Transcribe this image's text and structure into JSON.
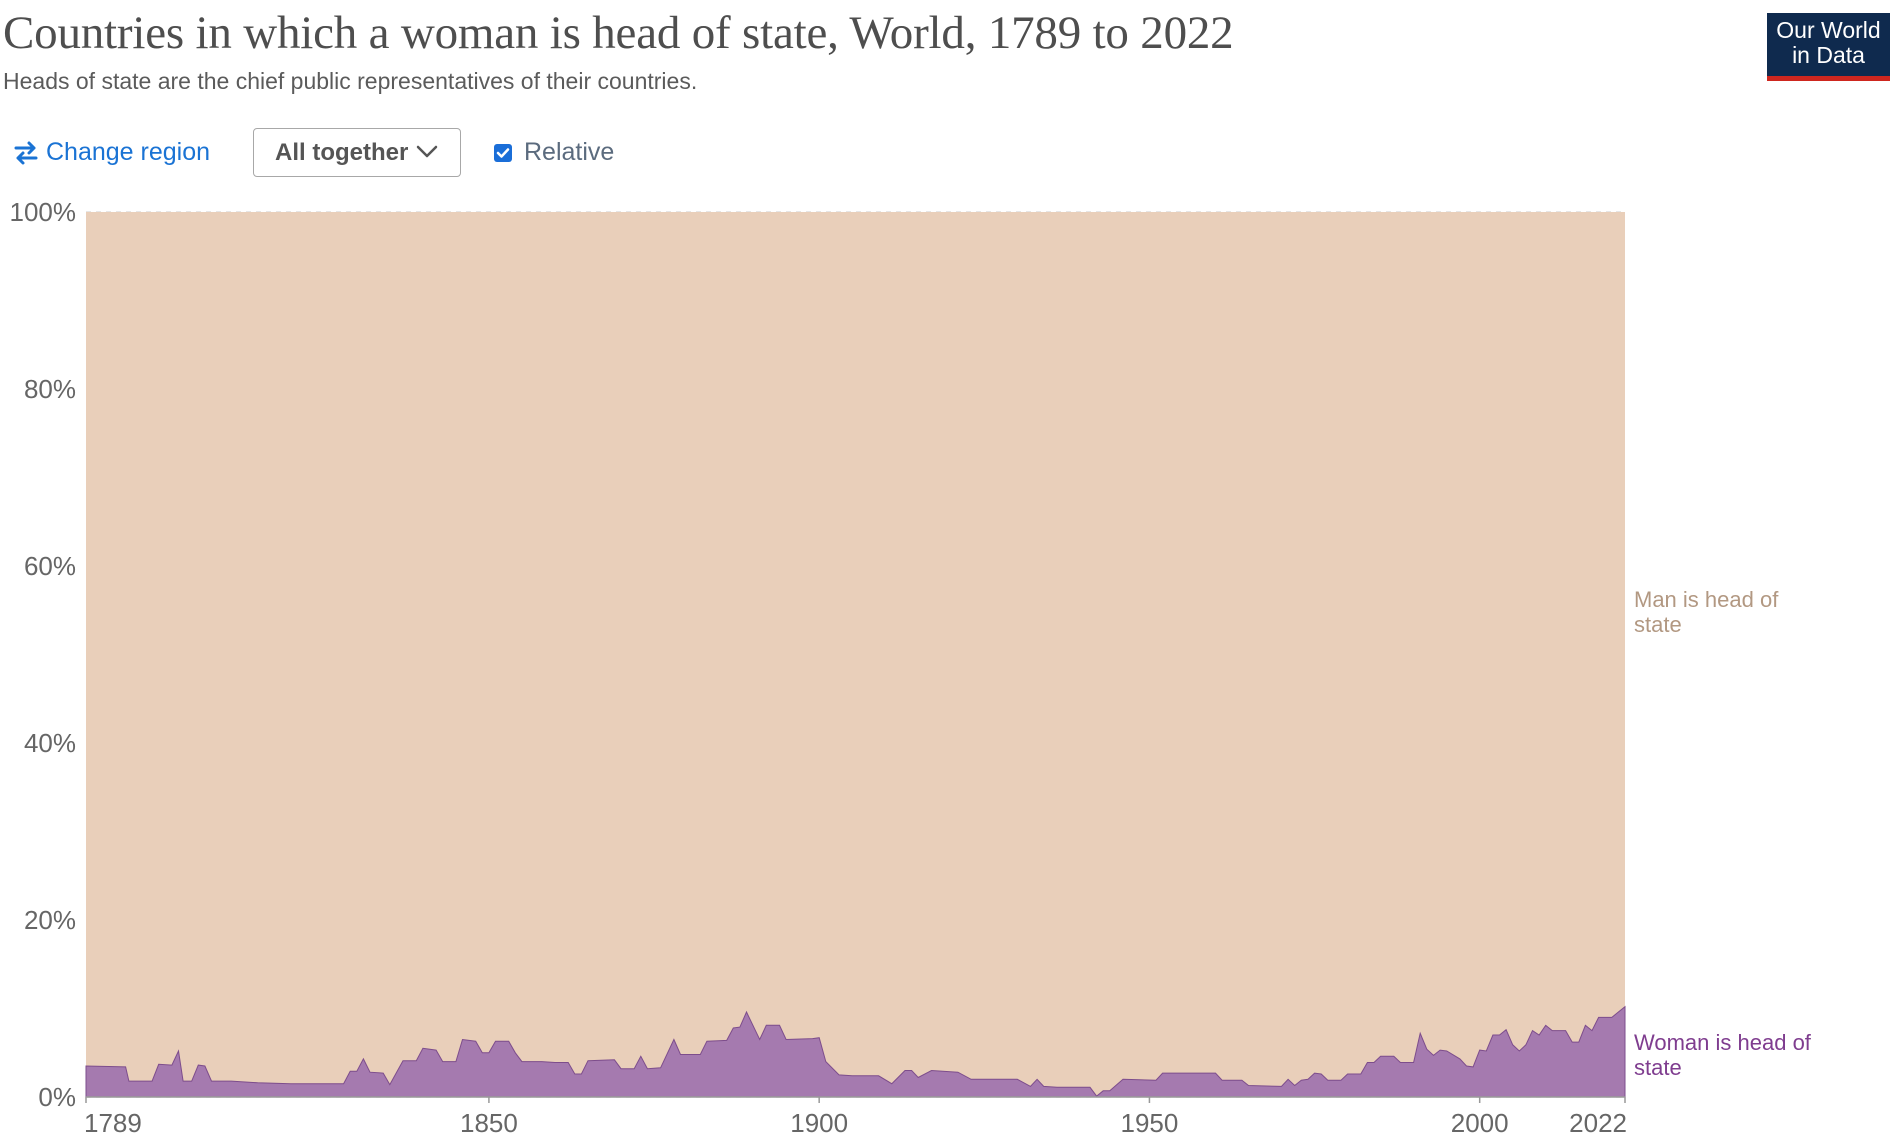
{
  "header": {
    "title": "Countries in which a woman is head of state, World, 1789 to 2022",
    "subtitle": "Heads of state are the chief public representatives of their countries."
  },
  "logo": {
    "line1": "Our World",
    "line2": "in Data"
  },
  "controls": {
    "change_region_label": "Change region",
    "facet_selected": "All together",
    "relative_label": "Relative",
    "relative_checked": true
  },
  "colors": {
    "woman": "#a57aaf",
    "woman_stroke": "#7d4d8c",
    "woman_label": "#7f3d8f",
    "man": "#e9cfba",
    "man_label": "#b29882"
  },
  "chart_data": {
    "type": "area",
    "stacked": true,
    "relative": true,
    "xlim": [
      1789,
      2022
    ],
    "ylim": [
      0,
      100
    ],
    "x_ticks": [
      "1789",
      "1850",
      "1900",
      "1950",
      "2000",
      "2022"
    ],
    "y_ticks": [
      "0%",
      "20%",
      "40%",
      "60%",
      "80%",
      "100%"
    ],
    "grid": "horizontal dashed",
    "series": [
      {
        "name": "Woman is head of state",
        "points": [
          [
            1789,
            3.5
          ],
          [
            1795,
            3.4
          ],
          [
            1795.5,
            1.8
          ],
          [
            1799,
            1.8
          ],
          [
            1800,
            3.7
          ],
          [
            1802,
            3.6
          ],
          [
            1803,
            5.2
          ],
          [
            1803.7,
            1.8
          ],
          [
            1805,
            1.8
          ],
          [
            1806,
            3.6
          ],
          [
            1807,
            3.5
          ],
          [
            1808,
            1.8
          ],
          [
            1811,
            1.8
          ],
          [
            1815,
            1.6
          ],
          [
            1820,
            1.5
          ],
          [
            1825,
            1.5
          ],
          [
            1828,
            1.5
          ],
          [
            1829,
            2.9
          ],
          [
            1830,
            2.9
          ],
          [
            1831,
            4.3
          ],
          [
            1832,
            2.8
          ],
          [
            1834,
            2.7
          ],
          [
            1835,
            1.4
          ],
          [
            1837,
            4.1
          ],
          [
            1839,
            4.1
          ],
          [
            1840,
            5.5
          ],
          [
            1842,
            5.3
          ],
          [
            1843,
            4.0
          ],
          [
            1845,
            4.0
          ],
          [
            1846,
            6.5
          ],
          [
            1848,
            6.3
          ],
          [
            1849,
            5.0
          ],
          [
            1850,
            5.0
          ],
          [
            1851,
            6.3
          ],
          [
            1853,
            6.3
          ],
          [
            1854,
            5.0
          ],
          [
            1855,
            4.0
          ],
          [
            1858,
            4.0
          ],
          [
            1860,
            3.9
          ],
          [
            1862,
            3.9
          ],
          [
            1863,
            2.6
          ],
          [
            1864,
            2.6
          ],
          [
            1865,
            4.1
          ],
          [
            1869,
            4.2
          ],
          [
            1870,
            3.2
          ],
          [
            1872,
            3.2
          ],
          [
            1873,
            4.6
          ],
          [
            1874,
            3.2
          ],
          [
            1876,
            3.3
          ],
          [
            1878,
            6.5
          ],
          [
            1879,
            4.8
          ],
          [
            1882,
            4.8
          ],
          [
            1883,
            6.3
          ],
          [
            1886,
            6.4
          ],
          [
            1887,
            7.8
          ],
          [
            1888,
            7.9
          ],
          [
            1889,
            9.6
          ],
          [
            1891,
            6.5
          ],
          [
            1892,
            8.1
          ],
          [
            1894,
            8.1
          ],
          [
            1895,
            6.5
          ],
          [
            1899,
            6.6
          ],
          [
            1900,
            6.7
          ],
          [
            1901,
            4.0
          ],
          [
            1903,
            2.5
          ],
          [
            1905,
            2.4
          ],
          [
            1909,
            2.4
          ],
          [
            1911,
            1.5
          ],
          [
            1913,
            3.0
          ],
          [
            1914,
            3.0
          ],
          [
            1915,
            2.2
          ],
          [
            1917,
            3.0
          ],
          [
            1921,
            2.8
          ],
          [
            1923,
            2.0
          ],
          [
            1930,
            2.0
          ],
          [
            1932,
            1.2
          ],
          [
            1933,
            2.0
          ],
          [
            1934,
            1.2
          ],
          [
            1936,
            1.1
          ],
          [
            1941,
            1.1
          ],
          [
            1942,
            0.1
          ],
          [
            1943,
            0.7
          ],
          [
            1944,
            0.7
          ],
          [
            1946,
            2.0
          ],
          [
            1951,
            1.9
          ],
          [
            1952,
            2.7
          ],
          [
            1960,
            2.7
          ],
          [
            1961,
            1.9
          ],
          [
            1964,
            1.9
          ],
          [
            1965,
            1.3
          ],
          [
            1970,
            1.2
          ],
          [
            1971,
            2.0
          ],
          [
            1972,
            1.3
          ],
          [
            1973,
            1.9
          ],
          [
            1974,
            2.0
          ],
          [
            1975,
            2.7
          ],
          [
            1976,
            2.6
          ],
          [
            1977,
            1.9
          ],
          [
            1979,
            1.9
          ],
          [
            1980,
            2.6
          ],
          [
            1982,
            2.6
          ],
          [
            1983,
            3.9
          ],
          [
            1984,
            3.9
          ],
          [
            1985,
            4.6
          ],
          [
            1987,
            4.6
          ],
          [
            1988,
            3.9
          ],
          [
            1990,
            3.9
          ],
          [
            1991,
            7.2
          ],
          [
            1992,
            5.4
          ],
          [
            1993,
            4.7
          ],
          [
            1994,
            5.3
          ],
          [
            1995,
            5.2
          ],
          [
            1997,
            4.3
          ],
          [
            1998,
            3.5
          ],
          [
            1999,
            3.4
          ],
          [
            2000,
            5.3
          ],
          [
            2001,
            5.2
          ],
          [
            2002,
            7.0
          ],
          [
            2003,
            7.0
          ],
          [
            2004,
            7.6
          ],
          [
            2005,
            5.9
          ],
          [
            2006,
            5.2
          ],
          [
            2007,
            5.9
          ],
          [
            2008,
            7.5
          ],
          [
            2009,
            7.0
          ],
          [
            2010,
            8.1
          ],
          [
            2011,
            7.5
          ],
          [
            2013,
            7.5
          ],
          [
            2014,
            6.2
          ],
          [
            2015,
            6.2
          ],
          [
            2016,
            8.1
          ],
          [
            2017,
            7.5
          ],
          [
            2018,
            9.0
          ],
          [
            2020,
            9.0
          ],
          [
            2021,
            9.6
          ],
          [
            2022,
            10.2
          ]
        ]
      },
      {
        "name": "Man is head of state"
      }
    ]
  }
}
